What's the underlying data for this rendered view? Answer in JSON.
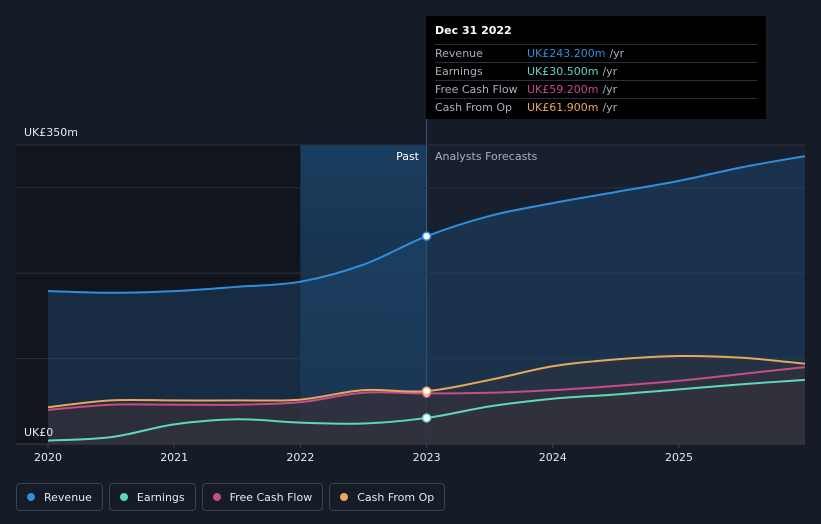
{
  "chart_data": {
    "type": "area",
    "currency_unit": "UK£",
    "y_axis": {
      "top_label": "UK£350m",
      "bottom_label": "UK£0",
      "ylim": [
        0,
        350
      ]
    },
    "x_axis": {
      "ticks": [
        "2020",
        "2021",
        "2022",
        "2023",
        "2024",
        "2025"
      ],
      "xlim": [
        2019.8,
        2026.0
      ]
    },
    "regions": {
      "past_label": "Past",
      "forecast_label": "Analysts Forecasts",
      "divider_x": 2023.0,
      "highlight_start_x": 2022.0
    },
    "grid": true,
    "series": [
      {
        "name": "Revenue",
        "color": "#2d8fe0",
        "points": [
          [
            2020.0,
            179
          ],
          [
            2020.5,
            177
          ],
          [
            2021.0,
            179
          ],
          [
            2021.5,
            184
          ],
          [
            2022.0,
            190
          ],
          [
            2022.5,
            210
          ],
          [
            2023.0,
            243.2
          ],
          [
            2023.5,
            267
          ],
          [
            2024.0,
            282
          ],
          [
            2024.5,
            295
          ],
          [
            2025.0,
            308
          ],
          [
            2025.5,
            324
          ],
          [
            2026.0,
            337
          ]
        ]
      },
      {
        "name": "Earnings",
        "color": "#5fd6c0",
        "points": [
          [
            2020.0,
            4
          ],
          [
            2020.5,
            8
          ],
          [
            2021.0,
            23
          ],
          [
            2021.5,
            29
          ],
          [
            2022.0,
            25
          ],
          [
            2022.5,
            24
          ],
          [
            2023.0,
            30.5
          ],
          [
            2023.5,
            44
          ],
          [
            2024.0,
            53
          ],
          [
            2024.5,
            58
          ],
          [
            2025.0,
            64
          ],
          [
            2025.5,
            70
          ],
          [
            2026.0,
            75
          ]
        ]
      },
      {
        "name": "Free Cash Flow",
        "color": "#c64d8a",
        "points": [
          [
            2020.0,
            40
          ],
          [
            2020.5,
            46
          ],
          [
            2021.0,
            46
          ],
          [
            2021.5,
            46
          ],
          [
            2022.0,
            49
          ],
          [
            2022.5,
            60
          ],
          [
            2023.0,
            59.2
          ],
          [
            2023.5,
            60
          ],
          [
            2024.0,
            63
          ],
          [
            2024.5,
            68
          ],
          [
            2025.0,
            74
          ],
          [
            2025.5,
            82
          ],
          [
            2026.0,
            90
          ]
        ]
      },
      {
        "name": "Cash From Op",
        "color": "#e8a75a",
        "points": [
          [
            2020.0,
            43
          ],
          [
            2020.5,
            51
          ],
          [
            2021.0,
            51
          ],
          [
            2021.5,
            51
          ],
          [
            2022.0,
            52
          ],
          [
            2022.5,
            63
          ],
          [
            2023.0,
            61.9
          ],
          [
            2023.5,
            75
          ],
          [
            2024.0,
            91
          ],
          [
            2024.5,
            99
          ],
          [
            2025.0,
            103
          ],
          [
            2025.5,
            101
          ],
          [
            2026.0,
            94
          ]
        ]
      }
    ],
    "tooltip": {
      "date": "Dec 31 2022",
      "unit": "/yr",
      "rows": [
        {
          "name": "Revenue",
          "value": "UK£243.200m",
          "color": "#2d8fe0"
        },
        {
          "name": "Earnings",
          "value": "UK£30.500m",
          "color": "#5fd6c0"
        },
        {
          "name": "Free Cash Flow",
          "value": "UK£59.200m",
          "color": "#c64d8a"
        },
        {
          "name": "Cash From Op",
          "value": "UK£61.900m",
          "color": "#e8a75a"
        }
      ]
    }
  },
  "legend": [
    {
      "label": "Revenue",
      "color": "#2d8fe0"
    },
    {
      "label": "Earnings",
      "color": "#5fd6c0"
    },
    {
      "label": "Free Cash Flow",
      "color": "#c64d8a"
    },
    {
      "label": "Cash From Op",
      "color": "#e8a75a"
    }
  ]
}
